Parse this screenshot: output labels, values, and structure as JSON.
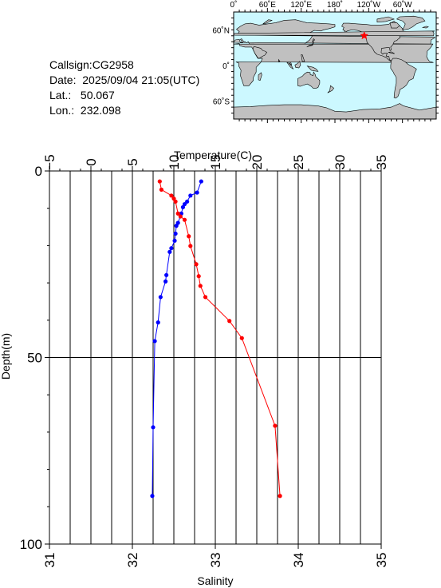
{
  "info": {
    "callsign": "Callsign:CG2958",
    "date": "Date:  2025/09/04 21:05(UTC)",
    "lat": "Lat.:   50.067",
    "lon": "Lon.:  232.098"
  },
  "map": {
    "top_labels": [
      "0˚",
      "60˚E",
      "120˚E",
      "180˚",
      "120˚W",
      "60˚W"
    ],
    "left_labels": [
      "60˚N",
      "0˚",
      "60˚S"
    ],
    "ocean_color": "#ccf8ff",
    "land_color": "#c0c0c0",
    "marker": {
      "lon": 232.098,
      "lat": 50.067,
      "color": "#ff0000",
      "icon": "star-icon"
    }
  },
  "chart_data": {
    "type": "line",
    "xlabel_top": "Temperature(C)",
    "xlabel_bottom": "Salinity",
    "ylabel": "Depth(m)",
    "temperature_axis": {
      "range": [
        -5,
        35
      ],
      "ticks": [
        "−5",
        "0",
        "5",
        "10",
        "15",
        "20",
        "25",
        "30",
        "35"
      ]
    },
    "salinity_axis": {
      "range": [
        31,
        35
      ],
      "ticks": [
        "31",
        "32",
        "33",
        "34",
        "35"
      ]
    },
    "depth_axis": {
      "range": [
        0,
        100
      ],
      "inverted": true,
      "ticks": [
        "0",
        "50",
        "100"
      ]
    },
    "grid": true,
    "series": [
      {
        "quantity": "temperature",
        "color": "#0000ff",
        "points": [
          [
            13.3,
            2.8
          ],
          [
            12.8,
            5.8
          ],
          [
            12.0,
            6.6
          ],
          [
            11.6,
            8.2
          ],
          [
            11.3,
            8.9
          ],
          [
            11.1,
            9.7
          ],
          [
            10.9,
            11.4
          ],
          [
            10.5,
            13.9
          ],
          [
            10.3,
            14.7
          ],
          [
            10.2,
            16.8
          ],
          [
            10.1,
            18.7
          ],
          [
            9.7,
            20.7
          ],
          [
            9.5,
            21.7
          ],
          [
            9.1,
            27.9
          ],
          [
            9.0,
            29.6
          ],
          [
            8.4,
            33.8
          ],
          [
            8.1,
            40.6
          ],
          [
            7.7,
            45.6
          ],
          [
            7.5,
            68.7
          ],
          [
            7.4,
            87.1
          ]
        ]
      },
      {
        "quantity": "salinity",
        "color": "#ff0000",
        "points": [
          [
            32.33,
            2.8
          ],
          [
            32.35,
            5.0
          ],
          [
            32.47,
            6.6
          ],
          [
            32.5,
            7.4
          ],
          [
            32.52,
            8.2
          ],
          [
            32.55,
            11.4
          ],
          [
            32.58,
            12.2
          ],
          [
            32.63,
            13.1
          ],
          [
            32.68,
            17.5
          ],
          [
            32.7,
            20.1
          ],
          [
            32.77,
            25.0
          ],
          [
            32.8,
            28.2
          ],
          [
            32.82,
            30.8
          ],
          [
            32.88,
            33.8
          ],
          [
            33.17,
            40.2
          ],
          [
            33.32,
            44.8
          ],
          [
            33.72,
            68.3
          ],
          [
            33.78,
            87.1
          ]
        ]
      }
    ]
  }
}
